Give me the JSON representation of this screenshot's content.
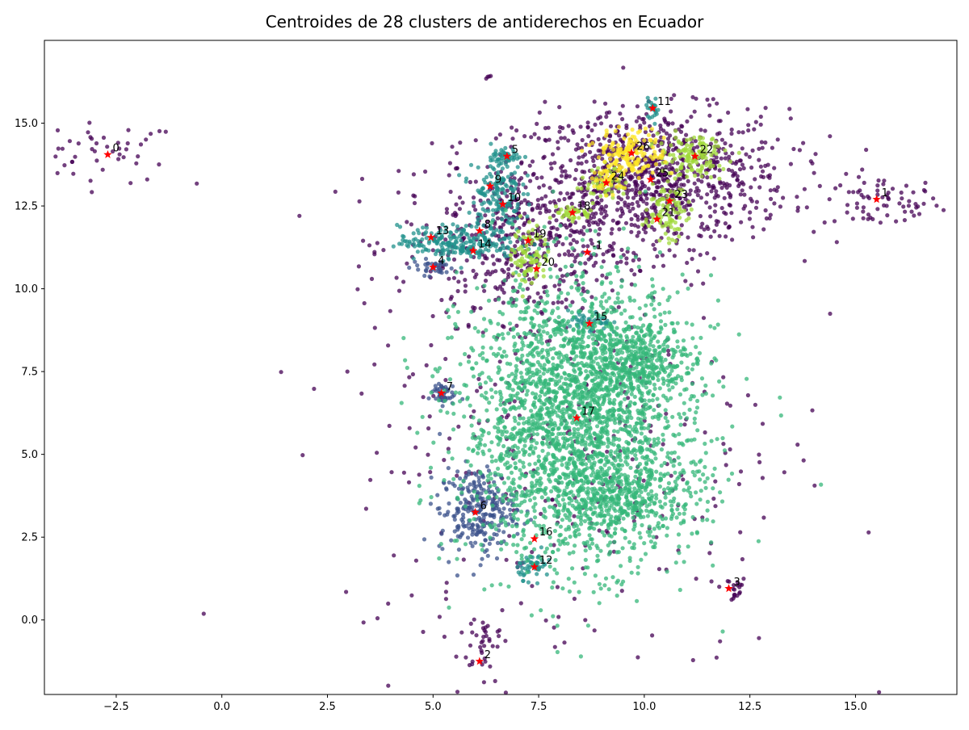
{
  "chart_data": {
    "type": "scatter",
    "title": "Centroides de 28 clusters de antiderechos en Ecuador",
    "xlabel": "",
    "ylabel": "",
    "xlim": [
      -4.2,
      17.4
    ],
    "ylim": [
      -2.25,
      17.5
    ],
    "x_ticks": [
      -2.5,
      0.0,
      2.5,
      5.0,
      7.5,
      10.0,
      12.5,
      15.0
    ],
    "y_ticks": [
      0.0,
      2.5,
      5.0,
      7.5,
      10.0,
      12.5,
      15.0
    ],
    "x_tick_labels": [
      "−2.5",
      "0.0",
      "2.5",
      "5.0",
      "7.5",
      "10.0",
      "12.5",
      "15.0"
    ],
    "y_tick_labels": [
      "0.0",
      "2.5",
      "5.0",
      "7.5",
      "10.0",
      "12.5",
      "15.0"
    ],
    "grid": false,
    "legend": "none",
    "centroid_color": "#ff0000",
    "centroids": [
      {
        "label": "-1",
        "x": 8.65,
        "y": 11.1
      },
      {
        "label": "0",
        "x": -2.7,
        "y": 14.05
      },
      {
        "label": "1",
        "x": 15.5,
        "y": 12.7
      },
      {
        "label": "2",
        "x": 6.1,
        "y": -1.25
      },
      {
        "label": "3",
        "x": 12.0,
        "y": 0.95
      },
      {
        "label": "4",
        "x": 5.0,
        "y": 10.65
      },
      {
        "label": "5",
        "x": 6.75,
        "y": 14.0
      },
      {
        "label": "6",
        "x": 6.0,
        "y": 3.25
      },
      {
        "label": "7",
        "x": 5.2,
        "y": 6.85
      },
      {
        "label": "8",
        "x": 6.1,
        "y": 11.75
      },
      {
        "label": "9",
        "x": 6.35,
        "y": 13.1
      },
      {
        "label": "10",
        "x": 6.65,
        "y": 12.55
      },
      {
        "label": "11",
        "x": 10.2,
        "y": 15.45
      },
      {
        "label": "12",
        "x": 7.4,
        "y": 1.6
      },
      {
        "label": "13",
        "x": 4.95,
        "y": 11.55
      },
      {
        "label": "14",
        "x": 5.95,
        "y": 11.15
      },
      {
        "label": "15",
        "x": 8.7,
        "y": 8.95
      },
      {
        "label": "16",
        "x": 7.4,
        "y": 2.45
      },
      {
        "label": "17",
        "x": 8.4,
        "y": 6.1
      },
      {
        "label": "18",
        "x": 8.3,
        "y": 12.3
      },
      {
        "label": "19",
        "x": 7.25,
        "y": 11.45
      },
      {
        "label": "20",
        "x": 7.45,
        "y": 10.6
      },
      {
        "label": "21",
        "x": 10.3,
        "y": 12.1
      },
      {
        "label": "22",
        "x": 11.2,
        "y": 14.0
      },
      {
        "label": "23",
        "x": 10.6,
        "y": 12.65
      },
      {
        "label": "24",
        "x": 9.1,
        "y": 13.2
      },
      {
        "label": "25",
        "x": 10.15,
        "y": 13.3
      },
      {
        "label": "26",
        "x": 9.7,
        "y": 14.1
      }
    ],
    "point_clusters": [
      {
        "color": "#440154",
        "cx": -2.8,
        "cy": 14.1,
        "sx": 0.9,
        "sy": 0.45,
        "n": 50
      },
      {
        "color": "#440154",
        "cx": 15.6,
        "cy": 12.6,
        "sx": 0.7,
        "sy": 0.4,
        "n": 70
      },
      {
        "color": "#440154",
        "cx": 12.05,
        "cy": 0.95,
        "sx": 0.2,
        "sy": 0.2,
        "n": 20
      },
      {
        "color": "#440154",
        "cx": 6.2,
        "cy": -0.6,
        "sx": 0.3,
        "sy": 0.6,
        "n": 40
      },
      {
        "color": "#440154",
        "cx": 10.2,
        "cy": 13.4,
        "sx": 1.6,
        "sy": 1.0,
        "n": 900
      },
      {
        "color": "#440154",
        "cx": 7.2,
        "cy": 11.4,
        "sx": 1.5,
        "sy": 1.2,
        "n": 500
      },
      {
        "color": "#440154",
        "cx": 8.2,
        "cy": 5.6,
        "sx": 2.6,
        "sy": 3.6,
        "n": 350
      },
      {
        "color": "#440154",
        "cx": 6.3,
        "cy": 16.4,
        "sx": 0.05,
        "sy": 0.05,
        "n": 4
      },
      {
        "color": "#3b528b",
        "cx": 6.05,
        "cy": 3.3,
        "sx": 0.45,
        "sy": 0.65,
        "n": 260
      },
      {
        "color": "#3b528b",
        "cx": 5.2,
        "cy": 6.85,
        "sx": 0.15,
        "sy": 0.18,
        "n": 40
      },
      {
        "color": "#3b528b",
        "cx": 5.0,
        "cy": 10.65,
        "sx": 0.25,
        "sy": 0.12,
        "n": 35
      },
      {
        "color": "#21918c",
        "cx": 5.6,
        "cy": 11.4,
        "sx": 0.7,
        "sy": 0.25,
        "n": 220
      },
      {
        "color": "#21918c",
        "cx": 6.5,
        "cy": 12.9,
        "sx": 0.3,
        "sy": 0.6,
        "n": 150
      },
      {
        "color": "#21918c",
        "cx": 6.75,
        "cy": 14.0,
        "sx": 0.18,
        "sy": 0.12,
        "n": 40
      },
      {
        "color": "#21918c",
        "cx": 10.2,
        "cy": 15.45,
        "sx": 0.08,
        "sy": 0.15,
        "n": 25
      },
      {
        "color": "#21918c",
        "cx": 8.7,
        "cy": 8.95,
        "sx": 0.25,
        "sy": 0.18,
        "n": 50
      },
      {
        "color": "#21918c",
        "cx": 7.4,
        "cy": 1.65,
        "sx": 0.2,
        "sy": 0.2,
        "n": 50
      },
      {
        "color": "#35b779",
        "cx": 8.4,
        "cy": 6.0,
        "sx": 1.35,
        "sy": 2.1,
        "n": 2400
      },
      {
        "color": "#35b779",
        "cx": 9.6,
        "cy": 7.9,
        "sx": 0.8,
        "sy": 0.6,
        "n": 400
      },
      {
        "color": "#35b779",
        "cx": 9.5,
        "cy": 3.7,
        "sx": 0.9,
        "sy": 0.6,
        "n": 400
      },
      {
        "color": "#a0da39",
        "cx": 11.15,
        "cy": 14.0,
        "sx": 0.4,
        "sy": 0.3,
        "n": 120
      },
      {
        "color": "#a0da39",
        "cx": 10.5,
        "cy": 12.4,
        "sx": 0.25,
        "sy": 0.45,
        "n": 90
      },
      {
        "color": "#a0da39",
        "cx": 7.3,
        "cy": 11.05,
        "sx": 0.2,
        "sy": 0.5,
        "n": 80
      },
      {
        "color": "#a0da39",
        "cx": 8.3,
        "cy": 12.3,
        "sx": 0.25,
        "sy": 0.12,
        "n": 40
      },
      {
        "color": "#a0da39",
        "cx": 9.1,
        "cy": 13.2,
        "sx": 0.25,
        "sy": 0.25,
        "n": 50
      },
      {
        "color": "#fde725",
        "cx": 9.7,
        "cy": 14.1,
        "sx": 0.4,
        "sy": 0.35,
        "n": 150
      },
      {
        "color": "#fde725",
        "cx": 9.15,
        "cy": 13.3,
        "sx": 0.2,
        "sy": 0.2,
        "n": 40
      }
    ]
  }
}
